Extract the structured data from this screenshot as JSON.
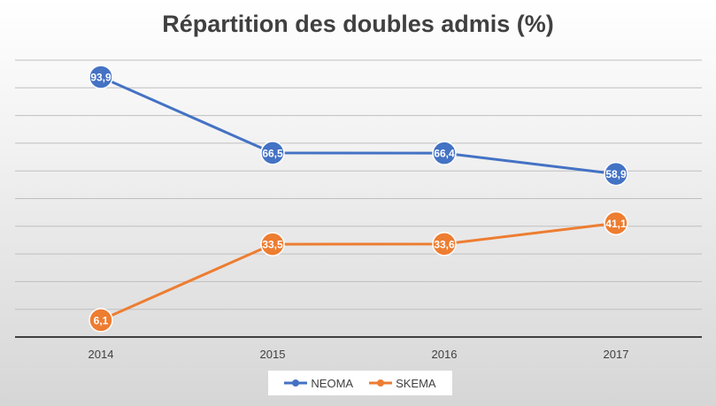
{
  "chart_data": {
    "type": "line",
    "title": "Répartition des doubles admis (%)",
    "categories": [
      "2014",
      "2015",
      "2016",
      "2017"
    ],
    "series": [
      {
        "name": "NEOMA",
        "values": [
          93.9,
          66.5,
          66.4,
          58.9
        ],
        "labels": [
          "93,9",
          "66,5",
          "66,4",
          "58,9"
        ],
        "color": "#4472C4"
      },
      {
        "name": "SKEMA",
        "values": [
          6.1,
          33.5,
          33.6,
          41.1
        ],
        "labels": [
          "6,1",
          "33,5",
          "33,6",
          "41,1"
        ],
        "color": "#ED7D31"
      }
    ],
    "ylim": [
      0,
      100
    ],
    "grid": true,
    "legend_position": "bottom"
  }
}
